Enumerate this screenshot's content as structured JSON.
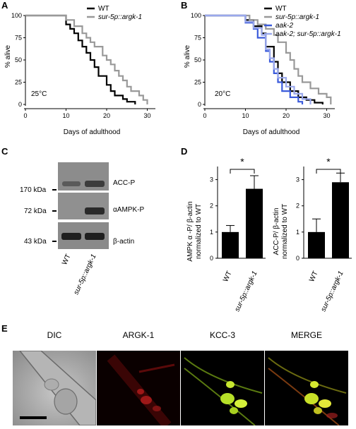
{
  "panels": {
    "A": {
      "letter": "A",
      "temp": "25°C",
      "ylabel": "% alive",
      "xlabel": "Days of adulthood",
      "yticks": [
        "0",
        "25",
        "50",
        "75",
        "100"
      ],
      "xticks": [
        "0",
        "10",
        "20",
        "30"
      ],
      "legend": [
        {
          "name": "WT",
          "color": "#000000"
        },
        {
          "name": "sur-5p::argk-1",
          "color": "#999999"
        }
      ]
    },
    "B": {
      "letter": "B",
      "temp": "20°C",
      "ylabel": "% alive",
      "xlabel": "Days of adulthood",
      "yticks": [
        "0",
        "25",
        "50",
        "75",
        "100"
      ],
      "xticks": [
        "0",
        "10",
        "20",
        "30"
      ],
      "legend": [
        {
          "name": "WT",
          "color": "#000000"
        },
        {
          "name": "sur-5p::argk-1",
          "color": "#999999"
        },
        {
          "name": "aak-2",
          "color": "#3b5bdb"
        },
        {
          "name": "aak-2; sur-5p::argk-1",
          "color": "#9aa8ec"
        }
      ]
    },
    "C": {
      "letter": "C",
      "rows": [
        {
          "size": "",
          "band": "ACC-P"
        },
        {
          "size": "170 kDa",
          "band": ""
        },
        {
          "size": "72 kDa",
          "band": "αAMPK-P"
        },
        {
          "size": "43 kDa",
          "band": "β-actin"
        }
      ],
      "lanes": [
        "WT",
        "sur-5p::argk-1"
      ]
    },
    "D": {
      "letter": "D",
      "left": {
        "ylabel1": "AMPK α -P/ β-actin",
        "ylabel2": "normalized to WT",
        "yticks": [
          "0",
          "1",
          "2",
          "3"
        ],
        "categories": [
          "WT",
          "sur-5p::argk-1"
        ],
        "values": [
          1.0,
          2.65
        ],
        "errors": [
          0.25,
          0.5
        ],
        "sig": "*"
      },
      "right": {
        "ylabel1": "ACC-P/ β-actin",
        "ylabel2": "normalized to WT",
        "yticks": [
          "0",
          "1",
          "2",
          "3"
        ],
        "categories": [
          "WT",
          "sur-5p::argk-1"
        ],
        "values": [
          1.0,
          2.9
        ],
        "errors": [
          0.5,
          0.35
        ],
        "sig": "*"
      }
    },
    "E": {
      "letter": "E",
      "titles": [
        "DIC",
        "ARGK-1",
        "KCC-3",
        "MERGE"
      ]
    }
  },
  "chart_data": [
    {
      "type": "line",
      "panel": "A",
      "xlabel": "Days of adulthood",
      "ylabel": "% alive",
      "xlim": [
        0,
        32
      ],
      "ylim": [
        0,
        100
      ],
      "series": [
        {
          "name": "WT",
          "points": [
            [
              0,
              100
            ],
            [
              10,
              100
            ],
            [
              10,
              90
            ],
            [
              11,
              90
            ],
            [
              11,
              85
            ],
            [
              12,
              85
            ],
            [
              12,
              80
            ],
            [
              13,
              80
            ],
            [
              13,
              72
            ],
            [
              14,
              72
            ],
            [
              14,
              65
            ],
            [
              15,
              65
            ],
            [
              15,
              58
            ],
            [
              16,
              58
            ],
            [
              16,
              50
            ],
            [
              17,
              50
            ],
            [
              17,
              42
            ],
            [
              18,
              42
            ],
            [
              18,
              32
            ],
            [
              20,
              32
            ],
            [
              20,
              22
            ],
            [
              21,
              22
            ],
            [
              21,
              15
            ],
            [
              22,
              15
            ],
            [
              22,
              10
            ],
            [
              24,
              10
            ],
            [
              24,
              6
            ],
            [
              25,
              6
            ],
            [
              25,
              3
            ],
            [
              27,
              3
            ],
            [
              27,
              0
            ]
          ]
        },
        {
          "name": "sur-5p::argk-1",
          "points": [
            [
              0,
              100
            ],
            [
              10,
              100
            ],
            [
              10,
              95
            ],
            [
              12,
              95
            ],
            [
              12,
              88
            ],
            [
              14,
              88
            ],
            [
              14,
              80
            ],
            [
              15,
              80
            ],
            [
              15,
              75
            ],
            [
              16,
              75
            ],
            [
              16,
              70
            ],
            [
              17,
              70
            ],
            [
              17,
              65
            ],
            [
              19,
              65
            ],
            [
              19,
              55
            ],
            [
              20,
              55
            ],
            [
              20,
              50
            ],
            [
              21,
              50
            ],
            [
              21,
              45
            ],
            [
              22,
              45
            ],
            [
              22,
              38
            ],
            [
              23,
              38
            ],
            [
              23,
              32
            ],
            [
              24,
              32
            ],
            [
              24,
              27
            ],
            [
              25,
              27
            ],
            [
              25,
              20
            ],
            [
              26,
              20
            ],
            [
              26,
              15
            ],
            [
              28,
              15
            ],
            [
              28,
              10
            ],
            [
              29,
              10
            ],
            [
              29,
              5
            ],
            [
              30,
              5
            ],
            [
              30,
              0
            ]
          ]
        }
      ]
    },
    {
      "type": "line",
      "panel": "B",
      "xlabel": "Days of adulthood",
      "ylabel": "% alive",
      "xlim": [
        0,
        32
      ],
      "ylim": [
        0,
        100
      ],
      "series": [
        {
          "name": "WT",
          "points": [
            [
              0,
              100
            ],
            [
              10,
              100
            ],
            [
              10,
              95
            ],
            [
              12,
              95
            ],
            [
              12,
              88
            ],
            [
              14,
              88
            ],
            [
              14,
              80
            ],
            [
              15,
              80
            ],
            [
              15,
              65
            ],
            [
              17,
              65
            ],
            [
              17,
              48
            ],
            [
              18,
              48
            ],
            [
              18,
              35
            ],
            [
              19,
              35
            ],
            [
              19,
              25
            ],
            [
              21,
              25
            ],
            [
              21,
              15
            ],
            [
              23,
              15
            ],
            [
              23,
              8
            ],
            [
              25,
              8
            ],
            [
              25,
              5
            ],
            [
              27,
              5
            ],
            [
              27,
              2
            ],
            [
              29,
              2
            ],
            [
              29,
              0
            ]
          ]
        },
        {
          "name": "sur-5p::argk-1",
          "points": [
            [
              0,
              100
            ],
            [
              11,
              100
            ],
            [
              11,
              95
            ],
            [
              13,
              95
            ],
            [
              13,
              90
            ],
            [
              15,
              90
            ],
            [
              15,
              85
            ],
            [
              17,
              85
            ],
            [
              17,
              78
            ],
            [
              18,
              78
            ],
            [
              18,
              70
            ],
            [
              20,
              70
            ],
            [
              20,
              58
            ],
            [
              21,
              58
            ],
            [
              21,
              50
            ],
            [
              22,
              50
            ],
            [
              22,
              40
            ],
            [
              23,
              40
            ],
            [
              23,
              32
            ],
            [
              24,
              32
            ],
            [
              24,
              25
            ],
            [
              26,
              25
            ],
            [
              26,
              18
            ],
            [
              28,
              18
            ],
            [
              28,
              12
            ],
            [
              30,
              12
            ],
            [
              30,
              8
            ],
            [
              31,
              8
            ],
            [
              31,
              0
            ]
          ]
        },
        {
          "name": "aak-2",
          "points": [
            [
              0,
              100
            ],
            [
              10,
              100
            ],
            [
              10,
              92
            ],
            [
              12,
              92
            ],
            [
              12,
              85
            ],
            [
              13,
              85
            ],
            [
              13,
              75
            ],
            [
              15,
              75
            ],
            [
              15,
              60
            ],
            [
              16,
              60
            ],
            [
              16,
              48
            ],
            [
              17,
              48
            ],
            [
              17,
              35
            ],
            [
              18,
              35
            ],
            [
              18,
              25
            ],
            [
              19,
              25
            ],
            [
              19,
              15
            ],
            [
              21,
              15
            ],
            [
              21,
              8
            ],
            [
              23,
              8
            ],
            [
              23,
              3
            ],
            [
              24,
              3
            ],
            [
              24,
              0
            ]
          ]
        },
        {
          "name": "aak-2; sur-5p::argk-1",
          "points": [
            [
              0,
              100
            ],
            [
              10,
              100
            ],
            [
              10,
              93
            ],
            [
              12,
              93
            ],
            [
              12,
              86
            ],
            [
              14,
              86
            ],
            [
              14,
              78
            ],
            [
              15,
              78
            ],
            [
              15,
              62
            ],
            [
              16,
              62
            ],
            [
              16,
              52
            ],
            [
              17,
              52
            ],
            [
              17,
              40
            ],
            [
              18,
              40
            ],
            [
              18,
              30
            ],
            [
              20,
              30
            ],
            [
              20,
              20
            ],
            [
              22,
              20
            ],
            [
              22,
              12
            ],
            [
              24,
              12
            ],
            [
              24,
              6
            ],
            [
              26,
              6
            ],
            [
              26,
              0
            ]
          ]
        }
      ]
    },
    {
      "type": "bar",
      "panel": "D-left",
      "categories": [
        "WT",
        "sur-5p::argk-1"
      ],
      "values": [
        1.0,
        2.65
      ],
      "errors": [
        0.25,
        0.5
      ],
      "ylim": [
        0,
        3.5
      ]
    },
    {
      "type": "bar",
      "panel": "D-right",
      "categories": [
        "WT",
        "sur-5p::argk-1"
      ],
      "values": [
        1.0,
        2.9
      ],
      "errors": [
        0.5,
        0.35
      ],
      "ylim": [
        0,
        3.5
      ]
    }
  ]
}
